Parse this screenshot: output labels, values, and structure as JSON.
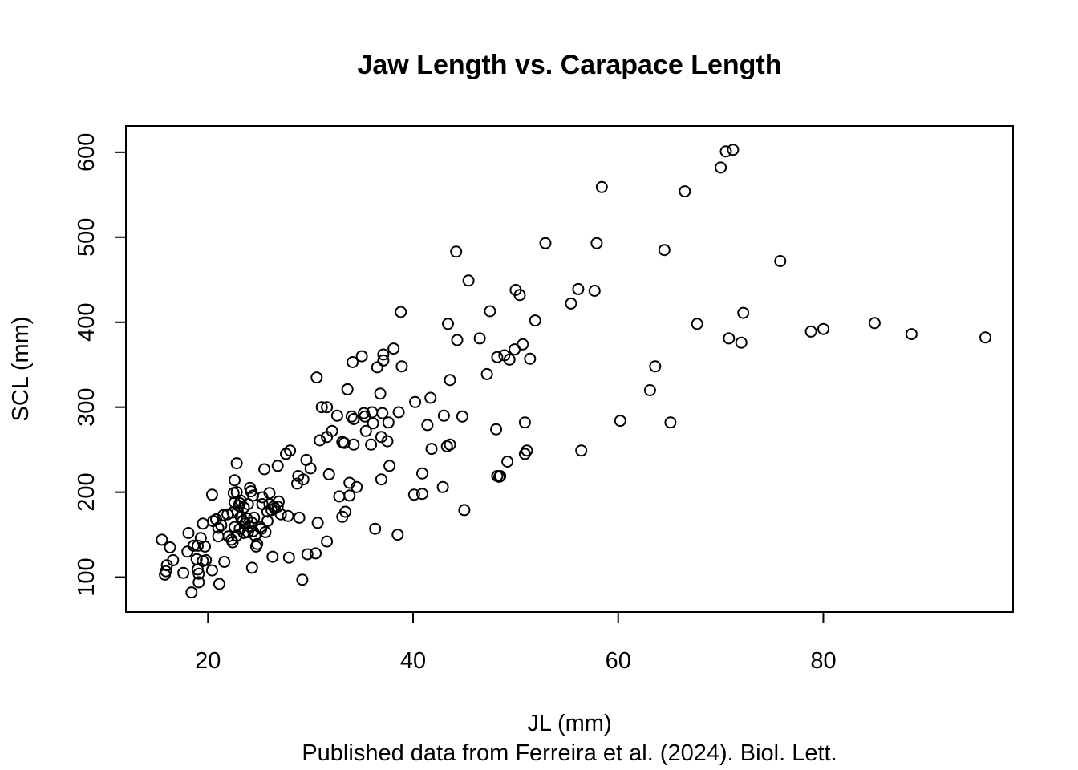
{
  "chart_data": {
    "type": "scatter",
    "title": "Jaw Length vs. Carapace Length",
    "xlabel": "JL (mm)",
    "ylabel": "SCL (mm)",
    "caption": "Published data from Ferreira et al. (2024). Biol. Lett.",
    "xlim": [
      12,
      98.5
    ],
    "ylim": [
      59,
      631
    ],
    "x_ticks": [
      20,
      40,
      60,
      80
    ],
    "y_ticks": [
      100,
      200,
      300,
      400,
      500,
      600
    ],
    "grid": false,
    "legend": "none",
    "marker": "open circle",
    "points": [
      [
        15.5,
        144
      ],
      [
        15.8,
        103
      ],
      [
        15.9,
        107
      ],
      [
        16.0,
        114
      ],
      [
        16.3,
        135
      ],
      [
        16.6,
        120
      ],
      [
        17.6,
        105
      ],
      [
        18.1,
        152
      ],
      [
        18.0,
        130
      ],
      [
        18.4,
        82
      ],
      [
        18.6,
        137
      ],
      [
        18.9,
        121
      ],
      [
        19.0,
        137
      ],
      [
        19.1,
        104
      ],
      [
        19.0,
        109
      ],
      [
        19.1,
        94
      ],
      [
        19.3,
        146
      ],
      [
        19.5,
        163
      ],
      [
        19.5,
        119
      ],
      [
        19.8,
        120
      ],
      [
        19.7,
        136
      ],
      [
        20.4,
        197
      ],
      [
        20.4,
        108
      ],
      [
        20.5,
        166
      ],
      [
        20.8,
        168
      ],
      [
        21.0,
        148
      ],
      [
        21.0,
        158
      ],
      [
        21.1,
        92
      ],
      [
        21.3,
        161
      ],
      [
        21.5,
        173
      ],
      [
        21.6,
        118
      ],
      [
        21.9,
        174
      ],
      [
        22.0,
        148
      ],
      [
        22.3,
        144
      ],
      [
        22.4,
        141
      ],
      [
        22.4,
        176
      ],
      [
        22.5,
        199
      ],
      [
        22.6,
        159
      ],
      [
        22.6,
        188
      ],
      [
        22.6,
        214
      ],
      [
        22.8,
        234
      ],
      [
        22.8,
        200
      ],
      [
        22.8,
        149
      ],
      [
        22.9,
        177
      ],
      [
        23.0,
        184
      ],
      [
        23.1,
        187
      ],
      [
        23.1,
        157
      ],
      [
        23.2,
        190
      ],
      [
        23.2,
        171
      ],
      [
        23.4,
        166
      ],
      [
        23.5,
        152
      ],
      [
        23.5,
        182
      ],
      [
        23.6,
        163
      ],
      [
        23.8,
        169
      ],
      [
        23.9,
        153
      ],
      [
        23.9,
        186
      ],
      [
        24.0,
        160
      ],
      [
        24.1,
        205
      ],
      [
        24.2,
        201
      ],
      [
        24.3,
        164
      ],
      [
        24.3,
        111
      ],
      [
        24.4,
        154
      ],
      [
        24.4,
        196
      ],
      [
        24.5,
        170
      ],
      [
        24.6,
        149
      ],
      [
        24.7,
        136
      ],
      [
        24.8,
        139
      ],
      [
        25.1,
        159
      ],
      [
        25.2,
        157
      ],
      [
        25.3,
        186
      ],
      [
        25.3,
        194
      ],
      [
        25.5,
        227
      ],
      [
        25.6,
        153
      ],
      [
        25.8,
        166
      ],
      [
        25.8,
        177
      ],
      [
        26.0,
        199
      ],
      [
        26.0,
        186
      ],
      [
        26.2,
        179
      ],
      [
        26.3,
        124
      ],
      [
        26.4,
        183
      ],
      [
        26.5,
        181
      ],
      [
        26.8,
        183
      ],
      [
        26.8,
        231
      ],
      [
        26.9,
        189
      ],
      [
        27.1,
        174
      ],
      [
        27.6,
        245
      ],
      [
        27.8,
        172
      ],
      [
        27.9,
        123
      ],
      [
        28.0,
        249
      ],
      [
        28.7,
        210
      ],
      [
        28.8,
        219
      ],
      [
        28.9,
        170
      ],
      [
        29.2,
        97
      ],
      [
        29.3,
        215
      ],
      [
        29.6,
        238
      ],
      [
        29.7,
        127
      ],
      [
        30.0,
        228
      ],
      [
        30.5,
        128
      ],
      [
        30.6,
        335
      ],
      [
        30.7,
        164
      ],
      [
        30.9,
        261
      ],
      [
        31.1,
        300
      ],
      [
        31.6,
        142
      ],
      [
        31.6,
        300
      ],
      [
        31.6,
        265
      ],
      [
        31.8,
        221
      ],
      [
        32.1,
        272
      ],
      [
        32.6,
        290
      ],
      [
        32.8,
        195
      ],
      [
        33.1,
        171
      ],
      [
        33.1,
        259
      ],
      [
        33.3,
        258
      ],
      [
        33.4,
        177
      ],
      [
        33.6,
        321
      ],
      [
        33.8,
        211
      ],
      [
        33.8,
        196
      ],
      [
        34.0,
        289
      ],
      [
        34.1,
        353
      ],
      [
        34.2,
        286
      ],
      [
        34.2,
        256
      ],
      [
        34.5,
        206
      ],
      [
        35.0,
        360
      ],
      [
        35.2,
        293
      ],
      [
        35.3,
        289
      ],
      [
        35.4,
        272
      ],
      [
        35.9,
        256
      ],
      [
        36.0,
        294
      ],
      [
        36.1,
        281
      ],
      [
        36.3,
        157
      ],
      [
        36.5,
        347
      ],
      [
        36.8,
        316
      ],
      [
        36.9,
        215
      ],
      [
        36.9,
        265
      ],
      [
        37.0,
        293
      ],
      [
        37.1,
        355
      ],
      [
        37.1,
        362
      ],
      [
        37.5,
        260
      ],
      [
        37.6,
        282
      ],
      [
        37.7,
        231
      ],
      [
        38.1,
        369
      ],
      [
        38.5,
        150
      ],
      [
        38.6,
        294
      ],
      [
        38.8,
        412
      ],
      [
        38.9,
        348
      ],
      [
        40.1,
        197
      ],
      [
        40.2,
        306
      ],
      [
        40.9,
        222
      ],
      [
        40.9,
        198
      ],
      [
        41.4,
        279
      ],
      [
        41.7,
        311
      ],
      [
        41.8,
        251
      ],
      [
        42.9,
        206
      ],
      [
        43.0,
        290
      ],
      [
        43.3,
        254
      ],
      [
        43.4,
        398
      ],
      [
        43.6,
        256
      ],
      [
        43.6,
        332
      ],
      [
        44.2,
        483
      ],
      [
        44.3,
        379
      ],
      [
        44.8,
        289
      ],
      [
        45.0,
        179
      ],
      [
        45.4,
        449
      ],
      [
        46.5,
        381
      ],
      [
        47.2,
        339
      ],
      [
        47.5,
        413
      ],
      [
        48.1,
        274
      ],
      [
        48.2,
        219
      ],
      [
        48.2,
        359
      ],
      [
        48.4,
        218
      ],
      [
        48.5,
        219
      ],
      [
        48.9,
        361
      ],
      [
        49.2,
        236
      ],
      [
        49.4,
        356
      ],
      [
        49.9,
        368
      ],
      [
        50.0,
        438
      ],
      [
        50.4,
        432
      ],
      [
        50.7,
        374
      ],
      [
        50.9,
        282
      ],
      [
        50.9,
        245
      ],
      [
        51.1,
        249
      ],
      [
        51.4,
        357
      ],
      [
        51.9,
        402
      ],
      [
        52.9,
        493
      ],
      [
        55.4,
        422
      ],
      [
        56.1,
        439
      ],
      [
        56.4,
        249
      ],
      [
        57.7,
        437
      ],
      [
        57.9,
        493
      ],
      [
        58.4,
        559
      ],
      [
        60.2,
        284
      ],
      [
        63.1,
        320
      ],
      [
        63.6,
        348
      ],
      [
        64.5,
        485
      ],
      [
        65.1,
        282
      ],
      [
        66.5,
        554
      ],
      [
        67.7,
        398
      ],
      [
        70.0,
        582
      ],
      [
        70.5,
        601
      ],
      [
        71.2,
        603
      ],
      [
        70.8,
        381
      ],
      [
        72.2,
        411
      ],
      [
        72.0,
        376
      ],
      [
        75.8,
        472
      ],
      [
        78.8,
        389
      ],
      [
        80.0,
        392
      ],
      [
        85.0,
        399
      ],
      [
        88.6,
        386
      ],
      [
        95.8,
        382
      ]
    ]
  }
}
